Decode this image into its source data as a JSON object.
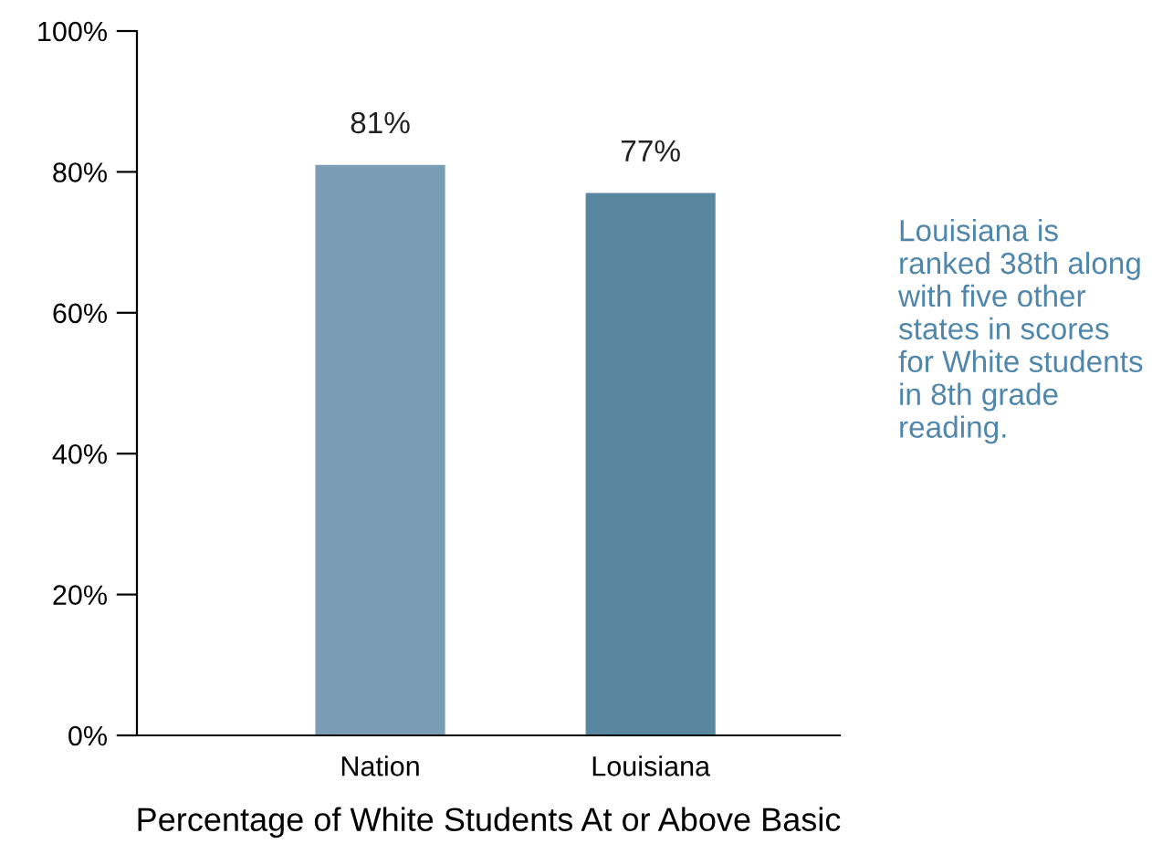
{
  "chart_data": {
    "type": "bar",
    "xlabel": "Percentage of White Students At or Above Basic",
    "categories": [
      "Nation",
      "Louisiana"
    ],
    "values": [
      81,
      77
    ],
    "colors": [
      "#7a9db5",
      "#5a87a0"
    ],
    "value_labels": [
      "81%",
      "77%"
    ],
    "ylim": [
      0,
      100
    ],
    "yticks": [
      {
        "value": 0,
        "label": "0%"
      },
      {
        "value": 20,
        "label": "20%"
      },
      {
        "value": 40,
        "label": "40%"
      },
      {
        "value": 60,
        "label": "60%"
      },
      {
        "value": 80,
        "label": "80%"
      },
      {
        "value": 100,
        "label": "100%"
      }
    ],
    "grid": false,
    "annotations": [
      "Louisiana is ranked 38th along with five other states in scores for White students in 8th grade reading."
    ]
  }
}
